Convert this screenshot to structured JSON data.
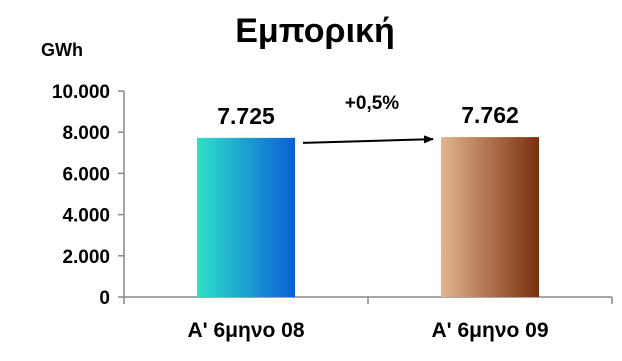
{
  "chart_data": {
    "type": "bar",
    "title": "Εμπορική",
    "ylabel": "GWh",
    "xlabel": "",
    "categories": [
      "A' 6μηνο 08",
      "A' 6μηνο 09"
    ],
    "values": [
      7725,
      7762
    ],
    "value_labels": [
      "7.725",
      "7.762"
    ],
    "ylim": [
      0,
      10000
    ],
    "yticks": [
      0,
      2000,
      4000,
      6000,
      8000,
      10000
    ],
    "ytick_labels": [
      "0",
      "2.000",
      "4.000",
      "6.000",
      "8.000",
      "10.000"
    ],
    "grid": false,
    "legend": "none",
    "annotation": "+0,5%",
    "bar_gradients": [
      [
        "#2fe0c8",
        "#0a5fd6"
      ],
      [
        "#e3b58e",
        "#7a2e0c"
      ]
    ]
  }
}
